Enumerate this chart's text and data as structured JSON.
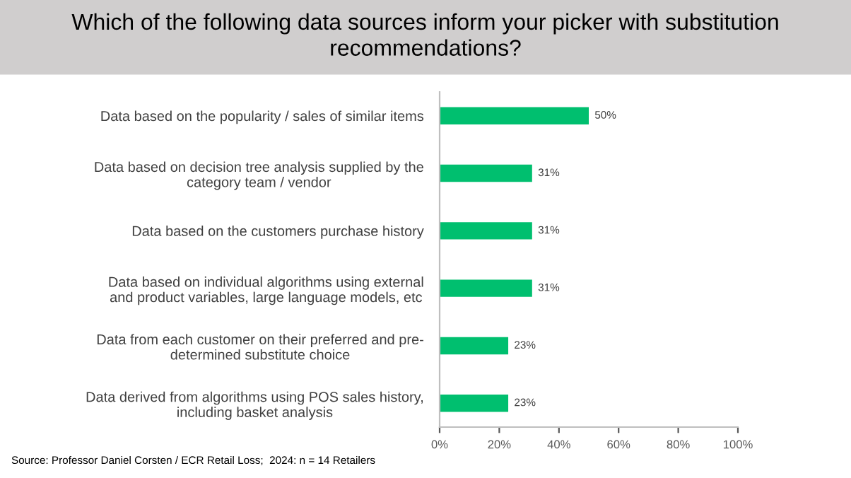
{
  "chart_data": {
    "type": "bar",
    "orientation": "horizontal",
    "title": "Which of the following data sources inform your picker with substitution\nrecommendations?",
    "categories": [
      "Data based on the popularity / sales of similar items",
      "Data based on decision tree analysis supplied by the\ncategory team / vendor",
      "Data based on the customers purchase history",
      "Data based on individual algorithms using external\nand product variables, large language models, etc",
      "Data from each customer on their preferred and pre-\ndetermined substitute choice",
      "Data derived from algorithms using POS sales history,\nincluding basket analysis"
    ],
    "values": [
      50,
      31,
      31,
      31,
      23,
      23
    ],
    "value_labels": [
      "50%",
      "31%",
      "31%",
      "31%",
      "23%",
      "23%"
    ],
    "color": "#00bf6f",
    "xlim": [
      0,
      100
    ],
    "xticks": [
      {
        "value": 0,
        "label": "0%"
      },
      {
        "value": 20,
        "label": "20%"
      },
      {
        "value": 40,
        "label": "40%"
      },
      {
        "value": 60,
        "label": "60%"
      },
      {
        "value": 80,
        "label": "80%"
      },
      {
        "value": 100,
        "label": "100%"
      }
    ],
    "grid": false,
    "legend": false,
    "annotations": [
      "Source: Professor Daniel Corsten / ECR Retail Loss;  2024: n = 14 Retailers"
    ]
  }
}
